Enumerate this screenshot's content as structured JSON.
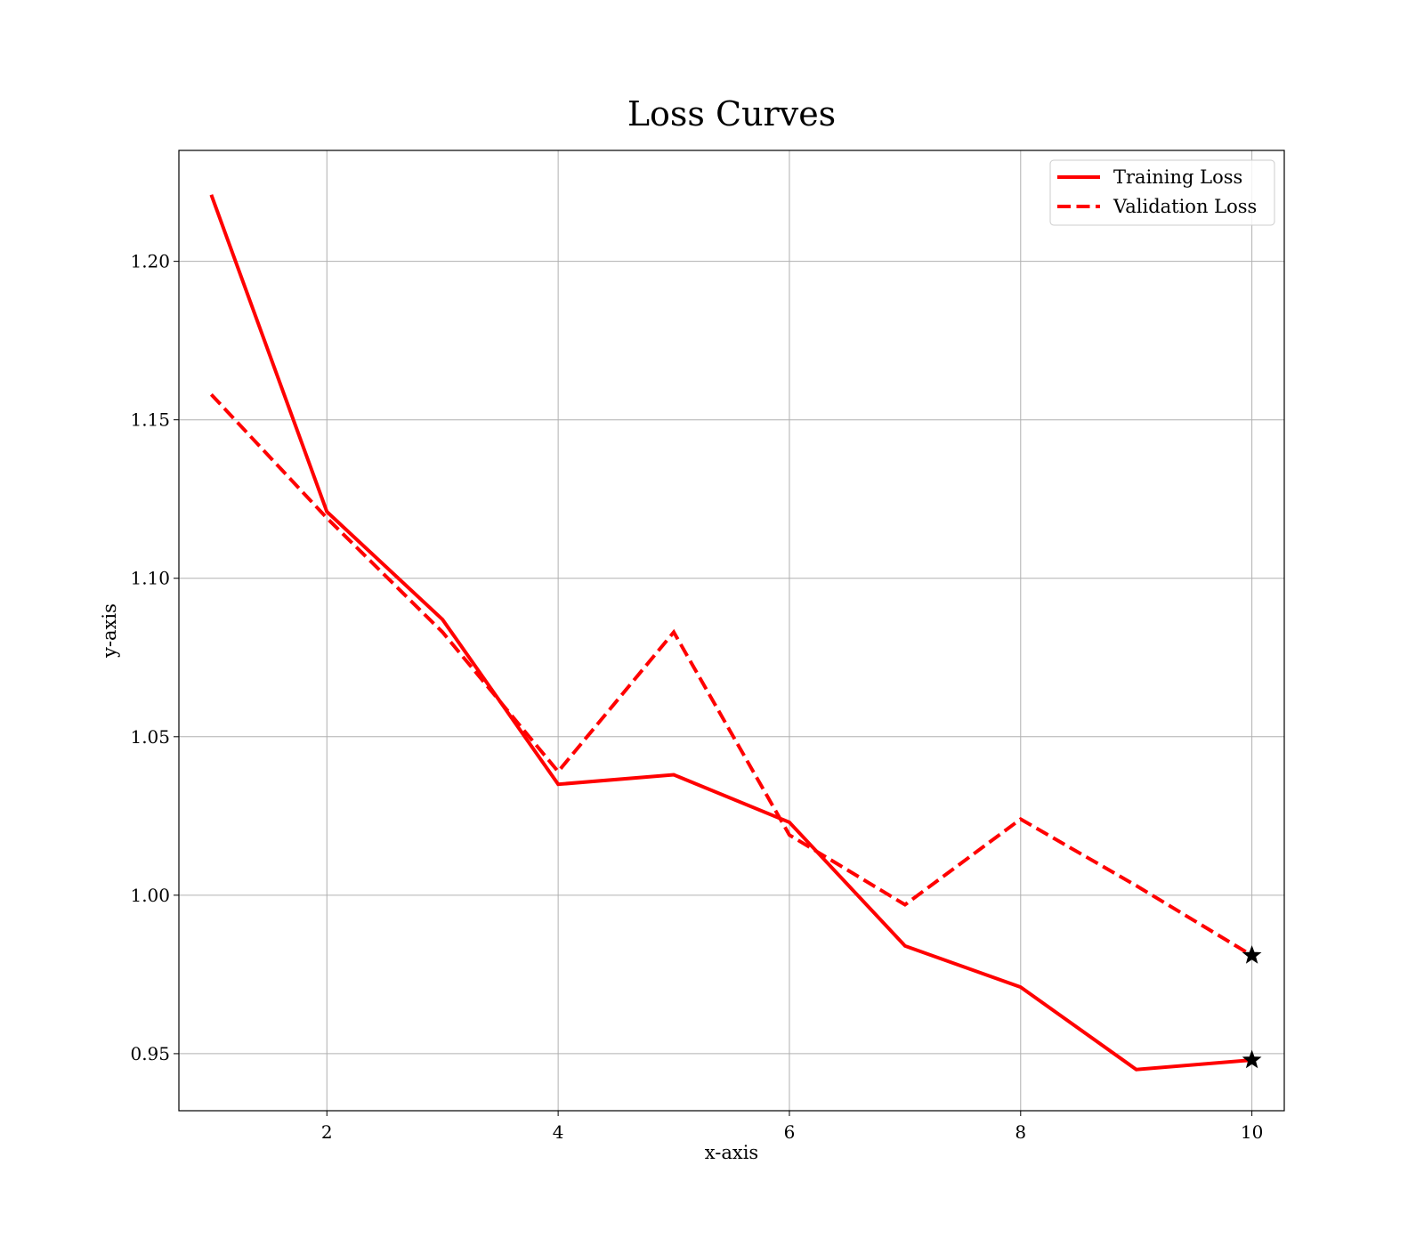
{
  "chart_data": {
    "type": "line",
    "title": "Loss Curves",
    "xlabel": "x-axis",
    "ylabel": "y-axis",
    "xlim": [
      0.72,
      10.28
    ],
    "ylim": [
      0.932,
      1.235
    ],
    "xticks": [
      2,
      4,
      6,
      8,
      10
    ],
    "yticks": [
      0.95,
      1.0,
      1.05,
      1.1,
      1.15,
      1.2
    ],
    "x": [
      1,
      2,
      3,
      4,
      5,
      6,
      7,
      8,
      9,
      10
    ],
    "grid": true,
    "legend_position": "top-right",
    "series": [
      {
        "name": "Training Loss",
        "style": "solid",
        "color": "#ff0000",
        "values": [
          1.221,
          1.121,
          1.087,
          1.035,
          1.038,
          1.023,
          0.984,
          0.971,
          0.945,
          0.948
        ],
        "end_marker": "star"
      },
      {
        "name": "Validation Loss",
        "style": "dashed",
        "color": "#ff0000",
        "values": [
          1.158,
          1.119,
          1.083,
          1.039,
          1.083,
          1.019,
          0.997,
          1.024,
          1.003,
          0.981
        ],
        "end_marker": "star"
      }
    ]
  }
}
